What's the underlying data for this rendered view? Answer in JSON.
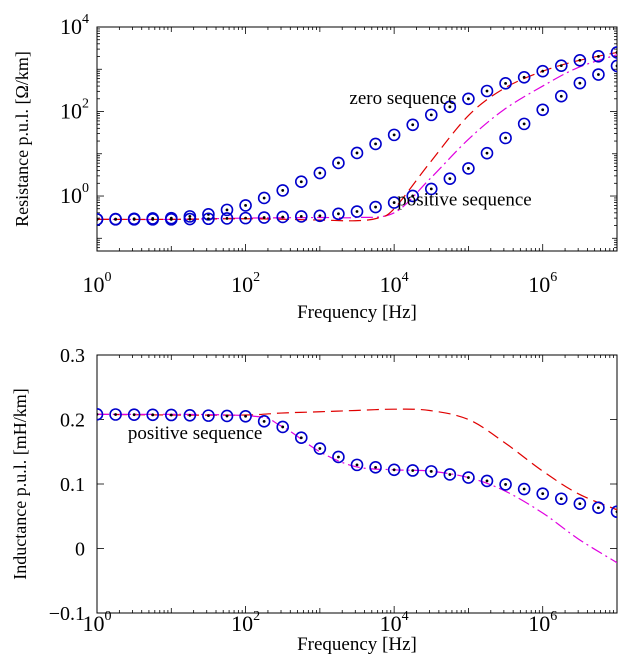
{
  "chart_data": [
    {
      "type": "line",
      "xlabel": "Frequency [Hz]",
      "ylabel": "Resistance p.u.l. [Ω/km]",
      "xscale": "log",
      "yscale": "log",
      "xlim": [
        1,
        10000000
      ],
      "ylim": [
        0.05,
        10000
      ],
      "x_ticks": [
        1,
        100,
        10000,
        1000000
      ],
      "x_tick_labels": [
        {
          "base": "10",
          "exp": "0"
        },
        {
          "base": "10",
          "exp": "2"
        },
        {
          "base": "10",
          "exp": "4"
        },
        {
          "base": "10",
          "exp": "6"
        }
      ],
      "y_ticks": [
        1,
        100,
        10000
      ],
      "y_tick_labels": [
        {
          "base": "10",
          "exp": "0"
        },
        {
          "base": "10",
          "exp": "2"
        },
        {
          "base": "10",
          "exp": "4"
        }
      ],
      "annotations": [
        {
          "text": "zero sequence",
          "x": 2500,
          "y": 150
        },
        {
          "text": "positive sequence",
          "x": 11000,
          "y": 0.6
        }
      ],
      "series": [
        {
          "style": "magenta-dashdot",
          "color": "#e000e0",
          "x": [
            1,
            10,
            100,
            1000,
            3000,
            10000,
            30000,
            100000,
            300000,
            1000000,
            3000000,
            10000000
          ],
          "y": [
            0.28,
            0.28,
            0.3,
            0.31,
            0.31,
            0.4,
            2.5,
            22,
            110,
            400,
            1100,
            2200
          ]
        },
        {
          "style": "red-dashed",
          "color": "#e00000",
          "x": [
            1,
            10,
            100,
            1000,
            3000,
            6000,
            10000,
            30000,
            100000,
            300000,
            1000000,
            3000000,
            10000000
          ],
          "y": [
            0.28,
            0.28,
            0.29,
            0.27,
            0.26,
            0.3,
            0.5,
            6,
            80,
            350,
            900,
            1600,
            2500
          ]
        },
        {
          "style": "blue-circle-dot",
          "color": "#0000cc",
          "x": [
            1,
            10,
            30,
            100,
            300,
            1000,
            3000,
            10000,
            30000,
            100000,
            300000,
            1000000,
            3000000,
            10000000
          ],
          "y": [
            0.28,
            0.3,
            0.36,
            0.6,
            1.3,
            3.5,
            10,
            28,
            80,
            200,
            450,
            900,
            1600,
            2500
          ]
        },
        {
          "style": "blue-circle-dot",
          "color": "#0000cc",
          "x": [
            1,
            10,
            100,
            1000,
            3000,
            10000,
            30000,
            100000,
            300000,
            1000000,
            3000000,
            10000000
          ],
          "y": [
            0.28,
            0.28,
            0.3,
            0.34,
            0.42,
            0.7,
            1.4,
            4.5,
            22,
            110,
            450,
            1200
          ]
        }
      ]
    },
    {
      "type": "line",
      "xlabel": "Frequency [Hz]",
      "ylabel": "Inductance p.u.l. [mH/km]",
      "xscale": "log",
      "yscale": "linear",
      "xlim": [
        1,
        10000000
      ],
      "ylim": [
        -0.1,
        0.3
      ],
      "x_ticks": [
        1,
        100,
        10000,
        1000000
      ],
      "x_tick_labels": [
        {
          "base": "10",
          "exp": "0"
        },
        {
          "base": "10",
          "exp": "2"
        },
        {
          "base": "10",
          "exp": "4"
        },
        {
          "base": "10",
          "exp": "6"
        }
      ],
      "y_ticks": [
        -0.1,
        0,
        0.1,
        0.2,
        0.3
      ],
      "y_tick_labels": [
        "−0.1",
        "0",
        "0.1",
        "0.2",
        "0.3"
      ],
      "annotations": [
        {
          "text": "positive sequence",
          "x": 2.6,
          "y": 0.17
        }
      ],
      "series": [
        {
          "style": "red-dashed",
          "color": "#e00000",
          "x": [
            1,
            10,
            100,
            300,
            1000,
            3000,
            10000,
            30000,
            100000,
            300000,
            1000000,
            3000000,
            10000000
          ],
          "y": [
            0.208,
            0.207,
            0.207,
            0.21,
            0.212,
            0.214,
            0.216,
            0.214,
            0.2,
            0.165,
            0.12,
            0.085,
            0.06
          ]
        },
        {
          "style": "magenta-dashdot",
          "color": "#e000e0",
          "x": [
            1,
            100,
            300,
            1000,
            3000,
            10000,
            30000,
            100000,
            300000,
            1000000,
            3000000,
            10000000
          ],
          "y": [
            0.208,
            0.206,
            0.19,
            0.15,
            0.127,
            0.122,
            0.12,
            0.11,
            0.09,
            0.055,
            0.015,
            -0.022
          ]
        },
        {
          "style": "blue-circle-dot",
          "color": "#0000cc",
          "x": [
            1,
            10,
            100,
            300,
            1000,
            3000,
            10000,
            30000,
            100000,
            300000,
            1000000,
            3000000,
            10000000
          ],
          "y": [
            0.208,
            0.207,
            0.205,
            0.19,
            0.155,
            0.13,
            0.122,
            0.12,
            0.11,
            0.1,
            0.085,
            0.07,
            0.057
          ]
        }
      ]
    }
  ]
}
